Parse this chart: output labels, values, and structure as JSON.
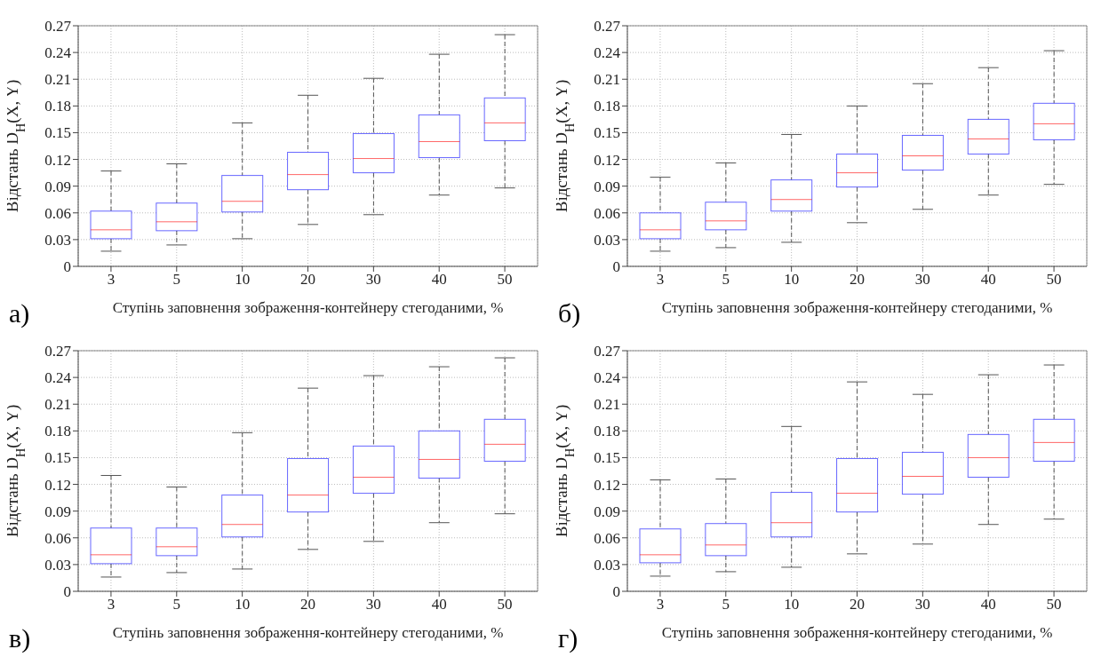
{
  "chart_data": [
    {
      "type": "box",
      "categories": [
        "3",
        "5",
        "10",
        "20",
        "30",
        "40",
        "50"
      ],
      "xlabel": "Ступінь заповнення зображення-контейнеру стегоданими, %",
      "ylabel": "Відстань D$_{H}$(X, Y)",
      "annotations": [
        "а)"
      ],
      "ylim": [
        0,
        0.27
      ],
      "yticks": [
        0,
        0.03,
        0.06,
        0.09,
        0.12,
        0.15,
        0.18,
        0.21,
        0.24,
        0.27
      ],
      "grid": true,
      "series": [
        {
          "color": "#0000ff",
          "boxes": [
            {
              "low": 0.017,
              "q1": 0.031,
              "median": 0.041,
              "q3": 0.062,
              "high": 0.107
            },
            {
              "low": 0.024,
              "q1": 0.04,
              "median": 0.05,
              "q3": 0.071,
              "high": 0.115
            },
            {
              "low": 0.031,
              "q1": 0.061,
              "median": 0.073,
              "q3": 0.102,
              "high": 0.161
            },
            {
              "low": 0.047,
              "q1": 0.086,
              "median": 0.103,
              "q3": 0.128,
              "high": 0.192
            },
            {
              "low": 0.058,
              "q1": 0.105,
              "median": 0.121,
              "q3": 0.149,
              "high": 0.211
            },
            {
              "low": 0.08,
              "q1": 0.122,
              "median": 0.14,
              "q3": 0.17,
              "high": 0.238
            },
            {
              "low": 0.088,
              "q1": 0.141,
              "median": 0.161,
              "q3": 0.189,
              "high": 0.26
            }
          ]
        }
      ]
    },
    {
      "type": "box",
      "categories": [
        "3",
        "5",
        "10",
        "20",
        "30",
        "40",
        "50"
      ],
      "xlabel": "Ступінь заповнення зображення-контейнеру стегоданими, %",
      "ylabel": "Відстань D$_{H}$(X, Y)",
      "annotations": [
        "б)"
      ],
      "ylim": [
        0,
        0.27
      ],
      "yticks": [
        0,
        0.03,
        0.06,
        0.09,
        0.12,
        0.15,
        0.18,
        0.21,
        0.24,
        0.27
      ],
      "grid": true,
      "series": [
        {
          "color": "#0000ff",
          "boxes": [
            {
              "low": 0.017,
              "q1": 0.031,
              "median": 0.041,
              "q3": 0.06,
              "high": 0.1
            },
            {
              "low": 0.021,
              "q1": 0.041,
              "median": 0.051,
              "q3": 0.072,
              "high": 0.116
            },
            {
              "low": 0.027,
              "q1": 0.062,
              "median": 0.075,
              "q3": 0.097,
              "high": 0.148
            },
            {
              "low": 0.049,
              "q1": 0.089,
              "median": 0.105,
              "q3": 0.126,
              "high": 0.18
            },
            {
              "low": 0.064,
              "q1": 0.108,
              "median": 0.124,
              "q3": 0.147,
              "high": 0.205
            },
            {
              "low": 0.08,
              "q1": 0.126,
              "median": 0.143,
              "q3": 0.165,
              "high": 0.223
            },
            {
              "low": 0.092,
              "q1": 0.142,
              "median": 0.16,
              "q3": 0.183,
              "high": 0.242
            }
          ]
        }
      ]
    },
    {
      "type": "box",
      "categories": [
        "3",
        "5",
        "10",
        "20",
        "30",
        "40",
        "50"
      ],
      "xlabel": "Ступінь заповнення зображення-контейнеру стегоданими, %",
      "ylabel": "Відстань D$_{H}$(X, Y)",
      "annotations": [
        "в)"
      ],
      "ylim": [
        0,
        0.27
      ],
      "yticks": [
        0,
        0.03,
        0.06,
        0.09,
        0.12,
        0.15,
        0.18,
        0.21,
        0.24,
        0.27
      ],
      "grid": true,
      "series": [
        {
          "color": "#0000ff",
          "boxes": [
            {
              "low": 0.016,
              "q1": 0.031,
              "median": 0.041,
              "q3": 0.071,
              "high": 0.13
            },
            {
              "low": 0.021,
              "q1": 0.04,
              "median": 0.05,
              "q3": 0.071,
              "high": 0.117
            },
            {
              "low": 0.025,
              "q1": 0.061,
              "median": 0.075,
              "q3": 0.108,
              "high": 0.178
            },
            {
              "low": 0.047,
              "q1": 0.089,
              "median": 0.108,
              "q3": 0.149,
              "high": 0.228
            },
            {
              "low": 0.056,
              "q1": 0.11,
              "median": 0.128,
              "q3": 0.163,
              "high": 0.242
            },
            {
              "low": 0.077,
              "q1": 0.127,
              "median": 0.148,
              "q3": 0.18,
              "high": 0.252
            },
            {
              "low": 0.087,
              "q1": 0.146,
              "median": 0.165,
              "q3": 0.193,
              "high": 0.262
            }
          ]
        }
      ]
    },
    {
      "type": "box",
      "categories": [
        "3",
        "5",
        "10",
        "20",
        "30",
        "40",
        "50"
      ],
      "xlabel": "Ступінь заповнення зображення-контейнеру стегоданими, %",
      "ylabel": "Відстань D$_{H}$(X, Y)",
      "annotations": [
        "г)"
      ],
      "ylim": [
        0,
        0.27
      ],
      "yticks": [
        0,
        0.03,
        0.06,
        0.09,
        0.12,
        0.15,
        0.18,
        0.21,
        0.24,
        0.27
      ],
      "grid": true,
      "series": [
        {
          "color": "#0000ff",
          "boxes": [
            {
              "low": 0.017,
              "q1": 0.032,
              "median": 0.041,
              "q3": 0.07,
              "high": 0.125
            },
            {
              "low": 0.022,
              "q1": 0.04,
              "median": 0.052,
              "q3": 0.076,
              "high": 0.126
            },
            {
              "low": 0.027,
              "q1": 0.061,
              "median": 0.077,
              "q3": 0.111,
              "high": 0.185
            },
            {
              "low": 0.042,
              "q1": 0.089,
              "median": 0.11,
              "q3": 0.149,
              "high": 0.235
            },
            {
              "low": 0.053,
              "q1": 0.109,
              "median": 0.129,
              "q3": 0.156,
              "high": 0.221
            },
            {
              "low": 0.075,
              "q1": 0.128,
              "median": 0.15,
              "q3": 0.176,
              "high": 0.243
            },
            {
              "low": 0.081,
              "q1": 0.146,
              "median": 0.167,
              "q3": 0.193,
              "high": 0.254
            }
          ]
        }
      ]
    }
  ]
}
